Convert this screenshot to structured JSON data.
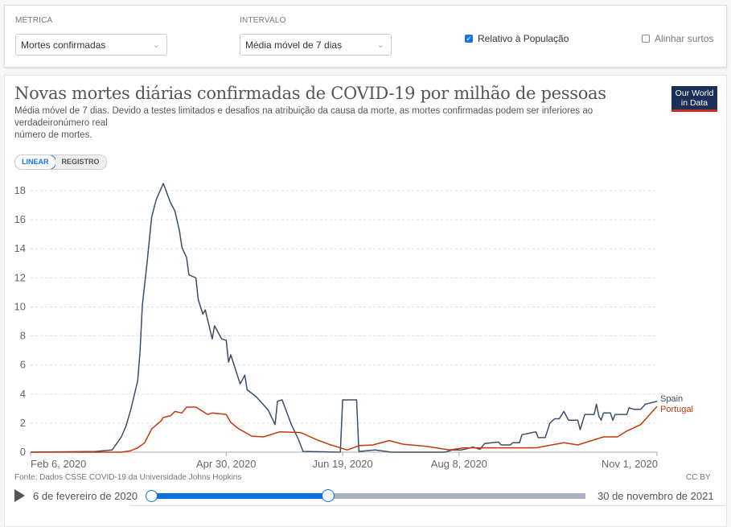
{
  "controls": {
    "metric_label": "MÉTRICA",
    "metric_value": "Mortes confirmadas",
    "interval_label": "INTERVALO",
    "interval_value": "Média móvel de 7 dias",
    "relative_label": "Relativo à População",
    "relative_checked": true,
    "align_label": "Alinhar surtos",
    "align_checked": false
  },
  "header": {
    "title": "Novas mortes diárias confirmadas de COVID-19 por milhão de pessoas",
    "subtitle_line1": "Média móvel de 7 dias. Devido a testes limitados e desafios na atribuição da causa da morte, as mortes confirmadas podem ser inferiores ao",
    "subtitle_line2": "verdadeironúmero real",
    "subtitle_line3": "número de mortes.",
    "logo_text": "Our World in Data"
  },
  "scale_toggle": {
    "linear": "LINEAR",
    "log": "REGISTRO",
    "selected": "LINEAR"
  },
  "footer": {
    "source": "Fonte: Dados CSSE COVID-19 da Universidade Johns Hopkins",
    "license": "CC BY"
  },
  "timeline": {
    "start_label": "6 de fevereiro de 2020",
    "end_label": "30 de novembro de 2021",
    "range_start": "2020-02-06",
    "range_end": "2021-11-30",
    "selected_start": "2020-02-06",
    "selected_end": "2020-11-01",
    "accent": "#0a6fe0"
  },
  "chart_data": {
    "type": "line",
    "title": "Novas mortes diárias confirmadas de COVID-19 por milhão de pessoas",
    "xlim": [
      "2020-02-06",
      "2020-11-01"
    ],
    "ylim": [
      0,
      18
    ],
    "x_ticks": [
      {
        "date": "2020-02-06",
        "label": "Feb 6, 2020"
      },
      {
        "date": "2020-04-30",
        "label": "Apr 30, 2020"
      },
      {
        "date": "2020-06-19",
        "label": "Jun 19, 2020"
      },
      {
        "date": "2020-08-08",
        "label": "Aug 8, 2020"
      },
      {
        "date": "2020-11-01",
        "label": "Nov 1, 2020"
      }
    ],
    "y_ticks": [
      0,
      2,
      4,
      6,
      8,
      10,
      12,
      14,
      16,
      18
    ],
    "grid": "horizontal dashed",
    "legend": "end-of-line labels, right",
    "series": [
      {
        "name": "Spain",
        "color": "#3c4e66",
        "points": [
          [
            "2020-02-06",
            0
          ],
          [
            "2020-03-05",
            0.05
          ],
          [
            "2020-03-12",
            0.15
          ],
          [
            "2020-03-16",
            1.05
          ],
          [
            "2020-03-18",
            1.8
          ],
          [
            "2020-03-20",
            2.9
          ],
          [
            "2020-03-23",
            4.9
          ],
          [
            "2020-03-24",
            6.9
          ],
          [
            "2020-03-25",
            10.1
          ],
          [
            "2020-03-27",
            13.0
          ],
          [
            "2020-03-29",
            16.2
          ],
          [
            "2020-03-31",
            17.4
          ],
          [
            "2020-04-03",
            18.5
          ],
          [
            "2020-04-06",
            17.2
          ],
          [
            "2020-04-08",
            16.6
          ],
          [
            "2020-04-10",
            15.2
          ],
          [
            "2020-04-11",
            14.1
          ],
          [
            "2020-04-13",
            13.4
          ],
          [
            "2020-04-14",
            12.2
          ],
          [
            "2020-04-17",
            12.0
          ],
          [
            "2020-04-18",
            10.5
          ],
          [
            "2020-04-20",
            9.5
          ],
          [
            "2020-04-21",
            9.8
          ],
          [
            "2020-04-24",
            7.8
          ],
          [
            "2020-04-25",
            8.7
          ],
          [
            "2020-04-28",
            7.8
          ],
          [
            "2020-04-30",
            7.7
          ],
          [
            "2020-05-01",
            6.2
          ],
          [
            "2020-05-02",
            6.7
          ],
          [
            "2020-05-06",
            4.7
          ],
          [
            "2020-05-08",
            5.3
          ],
          [
            "2020-05-09",
            4.3
          ],
          [
            "2020-05-13",
            3.8
          ],
          [
            "2020-05-18",
            2.9
          ],
          [
            "2020-05-21",
            1.9
          ],
          [
            "2020-05-22",
            3.5
          ],
          [
            "2020-05-24",
            3.6
          ],
          [
            "2020-05-28",
            1.9
          ],
          [
            "2020-05-31",
            0.9
          ],
          [
            "2020-06-02",
            0.05
          ],
          [
            "2020-06-18",
            0
          ],
          [
            "2020-06-19",
            3.6
          ],
          [
            "2020-06-25",
            3.6
          ],
          [
            "2020-06-26",
            0.05
          ],
          [
            "2020-07-03",
            0.15
          ],
          [
            "2020-07-10",
            0
          ],
          [
            "2020-08-02",
            0
          ],
          [
            "2020-08-05",
            0.15
          ],
          [
            "2020-08-09",
            0.15
          ],
          [
            "2020-08-14",
            0.35
          ],
          [
            "2020-08-17",
            0.2
          ],
          [
            "2020-08-19",
            0.6
          ],
          [
            "2020-08-25",
            0.7
          ],
          [
            "2020-08-26",
            0.5
          ],
          [
            "2020-08-30",
            0.5
          ],
          [
            "2020-08-31",
            0.65
          ],
          [
            "2020-09-03",
            0.65
          ],
          [
            "2020-09-04",
            1.2
          ],
          [
            "2020-09-07",
            1.3
          ],
          [
            "2020-09-10",
            1.4
          ],
          [
            "2020-09-11",
            1.0
          ],
          [
            "2020-09-14",
            1.0
          ],
          [
            "2020-09-16",
            2.0
          ],
          [
            "2020-09-18",
            2.3
          ],
          [
            "2020-09-20",
            2.3
          ],
          [
            "2020-09-22",
            2.8
          ],
          [
            "2020-09-24",
            2.2
          ],
          [
            "2020-09-28",
            2.2
          ],
          [
            "2020-09-29",
            1.55
          ],
          [
            "2020-10-01",
            2.6
          ],
          [
            "2020-10-05",
            2.6
          ],
          [
            "2020-10-06",
            3.3
          ],
          [
            "2020-10-07",
            2.5
          ],
          [
            "2020-10-08",
            2.2
          ],
          [
            "2020-10-09",
            2.7
          ],
          [
            "2020-10-12",
            2.7
          ],
          [
            "2020-10-13",
            2.2
          ],
          [
            "2020-10-14",
            2.6
          ],
          [
            "2020-10-19",
            2.6
          ],
          [
            "2020-10-20",
            3.05
          ],
          [
            "2020-10-22",
            2.95
          ],
          [
            "2020-10-25",
            2.95
          ],
          [
            "2020-10-27",
            3.3
          ],
          [
            "2020-11-01",
            3.5
          ]
        ]
      },
      {
        "name": "Portugal",
        "color": "#c0390b",
        "points": [
          [
            "2020-02-06",
            0
          ],
          [
            "2020-03-16",
            0
          ],
          [
            "2020-03-20",
            0.1
          ],
          [
            "2020-03-23",
            0.3
          ],
          [
            "2020-03-26",
            0.65
          ],
          [
            "2020-03-29",
            1.6
          ],
          [
            "2020-04-02",
            2.15
          ],
          [
            "2020-04-03",
            2.4
          ],
          [
            "2020-04-06",
            2.5
          ],
          [
            "2020-04-08",
            2.8
          ],
          [
            "2020-04-11",
            2.7
          ],
          [
            "2020-04-13",
            3.1
          ],
          [
            "2020-04-17",
            3.1
          ],
          [
            "2020-04-22",
            2.6
          ],
          [
            "2020-04-24",
            2.7
          ],
          [
            "2020-04-30",
            2.6
          ],
          [
            "2020-05-02",
            2.05
          ],
          [
            "2020-05-05",
            1.65
          ],
          [
            "2020-05-11",
            1.1
          ],
          [
            "2020-05-16",
            1.05
          ],
          [
            "2020-05-23",
            1.4
          ],
          [
            "2020-06-01",
            1.35
          ],
          [
            "2020-06-08",
            0.85
          ],
          [
            "2020-06-13",
            0.55
          ],
          [
            "2020-06-17",
            0.35
          ],
          [
            "2020-06-21",
            0.15
          ],
          [
            "2020-06-26",
            0.45
          ],
          [
            "2020-07-02",
            0.5
          ],
          [
            "2020-07-09",
            0.8
          ],
          [
            "2020-07-15",
            0.55
          ],
          [
            "2020-07-25",
            0.4
          ],
          [
            "2020-08-04",
            0.15
          ],
          [
            "2020-08-10",
            0.3
          ],
          [
            "2020-08-24",
            0.3
          ],
          [
            "2020-09-10",
            0.3
          ],
          [
            "2020-09-22",
            0.65
          ],
          [
            "2020-09-28",
            0.5
          ],
          [
            "2020-10-09",
            1.05
          ],
          [
            "2020-10-15",
            1.05
          ],
          [
            "2020-10-19",
            1.45
          ],
          [
            "2020-10-25",
            1.9
          ],
          [
            "2020-11-01",
            3.15
          ]
        ]
      }
    ]
  }
}
